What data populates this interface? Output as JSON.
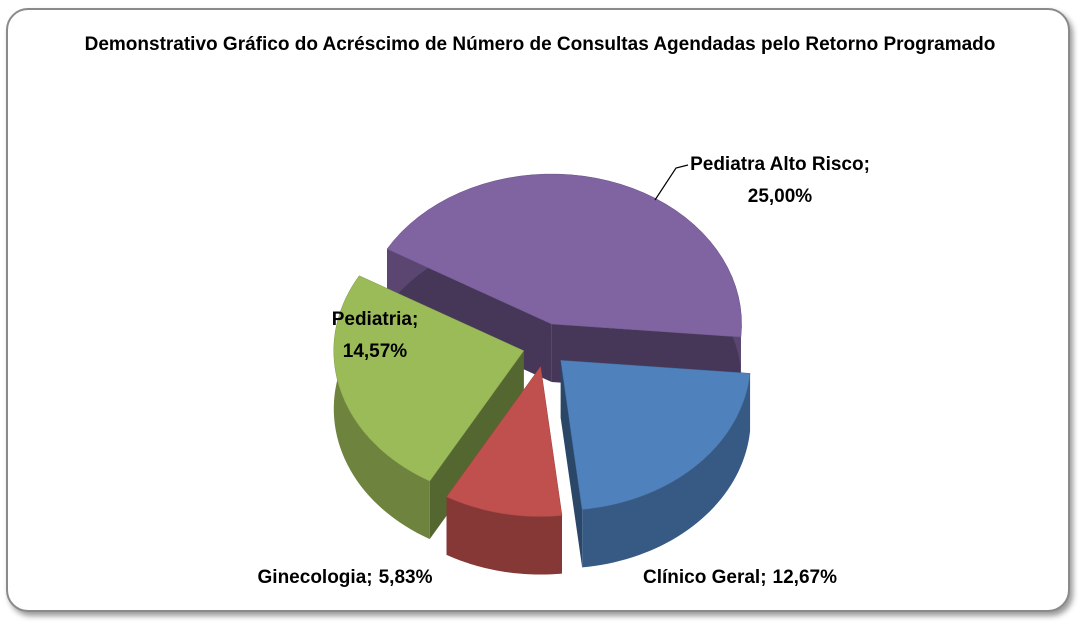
{
  "chart_data": {
    "type": "pie3d",
    "title": "Demonstrativo Gráfico do Acréscimo de Número de Consultas  Agendadas pelo Retorno Programado",
    "categories": [
      "Pediatra Alto Risco",
      "Clínico Geral",
      "Ginecologia",
      "Pediatria"
    ],
    "values": [
      25.0,
      12.67,
      5.83,
      14.57
    ],
    "value_labels": [
      "25,00%",
      "12,67%",
      "5,83%",
      "14,57%"
    ],
    "separator": ";",
    "colors": [
      "#8064a2",
      "#4f81bd",
      "#c0504d",
      "#9bbb59"
    ],
    "exploded": true
  }
}
